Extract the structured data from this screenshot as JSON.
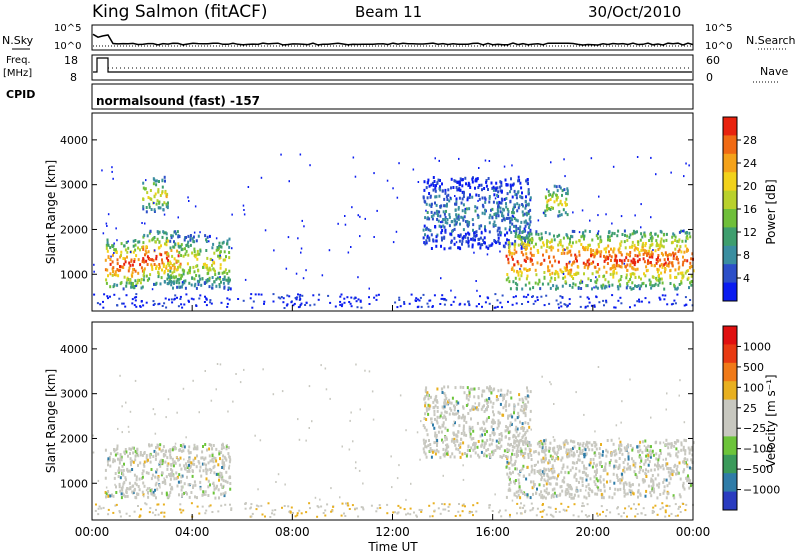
{
  "header": {
    "station": "King Salmon (fitACF)",
    "beam": "Beam 11",
    "date": "30/Oct/2010"
  },
  "summary_panels": {
    "nsky_label": "N.Sky",
    "nsearch_label": "N.Search",
    "noise_ticks": [
      "10^5",
      "10^0"
    ],
    "freq_label": "Freq.",
    "freq_unit": "[MHz]",
    "freq_ticks": [
      "18",
      "8"
    ],
    "nave_label": "Nave",
    "nave_ticks": [
      "60",
      "0"
    ],
    "cpid_label": "CPID",
    "cpid_text": "normalsound (fast) -157"
  },
  "chart_data": [
    {
      "type": "heatmap",
      "panel": "power",
      "ylabel": "Slant Range [km]",
      "xlabel": "",
      "ylim": [
        180,
        4600
      ],
      "xlim": [
        0,
        24
      ],
      "yticks": [
        1000,
        2000,
        3000,
        4000
      ],
      "colorbar": {
        "label": "Power [dB]",
        "ticks": [
          "28",
          "24",
          "20",
          "16",
          "12",
          "8",
          "4"
        ],
        "colors": [
          "#0a1cf0",
          "#2c4fc8",
          "#3a8ea0",
          "#3e9e6e",
          "#6fbf3a",
          "#b9d12c",
          "#f2d21a",
          "#f4a21a",
          "#f06a14",
          "#e8220e"
        ]
      },
      "echo_regions": [
        {
          "t": [
            0.5,
            2.0
          ],
          "range": [
            700,
            1800
          ],
          "level": "high"
        },
        {
          "t": [
            2.0,
            3.5
          ],
          "range": [
            800,
            2000
          ],
          "level": "high"
        },
        {
          "t": [
            3.0,
            5.5
          ],
          "range": [
            700,
            1900
          ],
          "level": "medium"
        },
        {
          "t": [
            2.0,
            3.0
          ],
          "range": [
            2400,
            3200
          ],
          "level": "medium"
        },
        {
          "t": [
            13.2,
            17.5
          ],
          "range": [
            1600,
            3200
          ],
          "level": "low"
        },
        {
          "t": [
            16.5,
            24.0
          ],
          "range": [
            700,
            2000
          ],
          "level": "high"
        },
        {
          "t": [
            18.0,
            19.0
          ],
          "range": [
            2300,
            3000
          ],
          "level": "medium"
        }
      ]
    },
    {
      "type": "heatmap",
      "panel": "velocity",
      "ylabel": "Slant Range [km]",
      "xlabel": "Time UT",
      "ylim": [
        180,
        4600
      ],
      "xlim": [
        0,
        24
      ],
      "yticks": [
        1000,
        2000,
        3000,
        4000
      ],
      "xticks": [
        "00:00",
        "04:00",
        "08:00",
        "12:00",
        "16:00",
        "20:00",
        "00:00"
      ],
      "colorbar": {
        "label": "Velocity [m s⁻¹]",
        "ticks": [
          "1000",
          "500",
          "100",
          "25",
          "−25",
          "−100",
          "−500",
          "−1000"
        ],
        "colors": [
          "#2a3cc0",
          "#2f7ca8",
          "#3a9a5a",
          "#6cc43a",
          "#c8c8c0",
          "#c8c8c0",
          "#e8b020",
          "#f07a18",
          "#e83a12",
          "#e01010"
        ]
      },
      "echo_regions": [
        {
          "t": [
            0.5,
            5.5
          ],
          "range": [
            700,
            1900
          ],
          "level": "ground"
        },
        {
          "t": [
            13.2,
            17.5
          ],
          "range": [
            1600,
            3200
          ],
          "level": "ground"
        },
        {
          "t": [
            16.5,
            24.0
          ],
          "range": [
            700,
            2000
          ],
          "level": "ground"
        }
      ]
    }
  ]
}
